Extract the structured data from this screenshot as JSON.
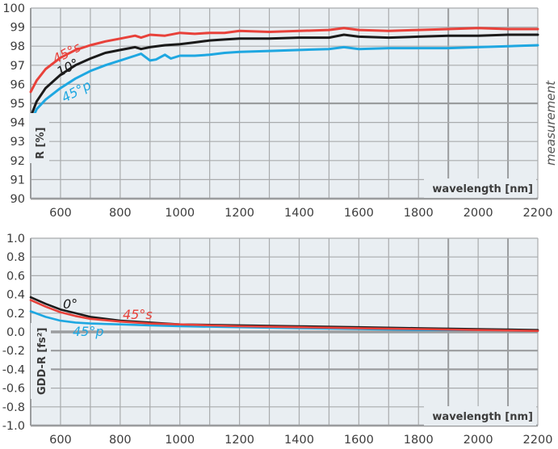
{
  "colors": {
    "panel_bg": "#e9eef2",
    "grid": "#a9abad",
    "grid_major": "#9a9c9e",
    "s45": "#e8413a",
    "deg": "#1a1a1a",
    "p45": "#1ea7e1",
    "text": "#3c3c3c"
  },
  "side_label": "measurement",
  "chart_data": [
    {
      "type": "line",
      "title": "",
      "xlabel": "wavelength [nm]",
      "ylabel": "R [%]",
      "xlim": [
        500,
        2200
      ],
      "ylim": [
        90,
        100
      ],
      "grid": true,
      "x_ticks": [
        600,
        800,
        1000,
        1200,
        1400,
        1600,
        1800,
        2000,
        2200
      ],
      "x_tick_labels": [
        "600",
        "800",
        "1000",
        "1200",
        "1400",
        "1600",
        "1800",
        "2000",
        "2200"
      ],
      "y_ticks": [
        90,
        91,
        92,
        93,
        94,
        95,
        96,
        97,
        98,
        99,
        100
      ],
      "y_tick_labels": [
        "90",
        "91",
        "92",
        "93",
        "94",
        "95",
        "96",
        "97",
        "98",
        "99",
        "100"
      ],
      "series": [
        {
          "name": "45°s",
          "color_key": "s45",
          "x": [
            500,
            520,
            550,
            600,
            650,
            700,
            750,
            800,
            850,
            870,
            900,
            950,
            1000,
            1050,
            1100,
            1150,
            1200,
            1300,
            1400,
            1500,
            1550,
            1600,
            1700,
            1800,
            1900,
            2000,
            2100,
            2200
          ],
          "y": [
            95.6,
            96.2,
            96.8,
            97.4,
            97.8,
            98.05,
            98.25,
            98.4,
            98.55,
            98.45,
            98.6,
            98.55,
            98.7,
            98.65,
            98.7,
            98.7,
            98.8,
            98.75,
            98.8,
            98.85,
            98.95,
            98.85,
            98.8,
            98.85,
            98.9,
            98.95,
            98.9,
            98.9
          ]
        },
        {
          "name": "10°",
          "color_key": "deg",
          "x": [
            500,
            520,
            550,
            600,
            650,
            700,
            750,
            800,
            850,
            870,
            900,
            950,
            1000,
            1050,
            1100,
            1150,
            1200,
            1300,
            1400,
            1500,
            1550,
            1600,
            1700,
            1800,
            1900,
            2000,
            2100,
            2200
          ],
          "y": [
            94.3,
            95.1,
            95.8,
            96.5,
            97.0,
            97.35,
            97.65,
            97.8,
            97.95,
            97.85,
            97.95,
            98.05,
            98.1,
            98.2,
            98.3,
            98.35,
            98.4,
            98.4,
            98.45,
            98.45,
            98.6,
            98.5,
            98.45,
            98.5,
            98.55,
            98.55,
            98.6,
            98.6
          ]
        },
        {
          "name": "45°p",
          "color_key": "p45",
          "x": [
            500,
            520,
            550,
            600,
            650,
            700,
            750,
            800,
            850,
            870,
            900,
            920,
            950,
            970,
            1000,
            1050,
            1100,
            1150,
            1200,
            1300,
            1400,
            1500,
            1550,
            1600,
            1700,
            1800,
            1900,
            2000,
            2100,
            2200
          ],
          "y": [
            94.0,
            94.7,
            95.2,
            95.8,
            96.3,
            96.7,
            97.0,
            97.25,
            97.5,
            97.6,
            97.25,
            97.3,
            97.55,
            97.35,
            97.5,
            97.5,
            97.55,
            97.65,
            97.7,
            97.75,
            97.8,
            97.85,
            97.95,
            97.85,
            97.9,
            97.9,
            97.9,
            97.95,
            98.0,
            98.05
          ]
        }
      ],
      "annotations": [
        "45°s",
        "10°",
        "45°p"
      ]
    },
    {
      "type": "line",
      "title": "",
      "xlabel": "wavelength [nm]",
      "ylabel": "GDD-R [fs²]",
      "xlim": [
        500,
        2200
      ],
      "ylim": [
        -1.0,
        1.0
      ],
      "grid": true,
      "x_ticks": [
        600,
        800,
        1000,
        1200,
        1400,
        1600,
        1800,
        2000,
        2200
      ],
      "x_tick_labels": [
        "600",
        "800",
        "1000",
        "1200",
        "1400",
        "1600",
        "1800",
        "2000",
        "2200"
      ],
      "y_ticks": [
        -1.0,
        -0.8,
        -0.6,
        -0.4,
        -0.2,
        0.0,
        0.2,
        0.4,
        0.6,
        0.8,
        1.0
      ],
      "y_tick_labels": [
        "-1.0",
        "-0.8",
        "-0.6",
        "-0.4",
        "-0.2",
        "0.0",
        "0.2",
        "0.4",
        "0.6",
        "0.8",
        "1.0"
      ],
      "series": [
        {
          "name": "0°",
          "color_key": "deg",
          "x": [
            500,
            550,
            600,
            650,
            700,
            800,
            900,
            1000,
            1200,
            1400,
            1600,
            1800,
            2000,
            2200
          ],
          "y": [
            0.37,
            0.3,
            0.24,
            0.2,
            0.16,
            0.12,
            0.1,
            0.08,
            0.07,
            0.06,
            0.05,
            0.04,
            0.03,
            0.02
          ]
        },
        {
          "name": "45°s",
          "color_key": "s45",
          "x": [
            500,
            550,
            600,
            650,
            700,
            800,
            900,
            1000,
            1200,
            1400,
            1600,
            1800,
            2000,
            2200
          ],
          "y": [
            0.34,
            0.27,
            0.21,
            0.17,
            0.14,
            0.11,
            0.09,
            0.08,
            0.06,
            0.05,
            0.04,
            0.03,
            0.02,
            0.01
          ]
        },
        {
          "name": "45°p",
          "color_key": "p45",
          "x": [
            500,
            550,
            600,
            650,
            700,
            800,
            900,
            1000,
            1200,
            1400,
            1600,
            1800,
            2000,
            2200
          ],
          "y": [
            0.22,
            0.16,
            0.12,
            0.1,
            0.09,
            0.08,
            0.07,
            0.06,
            0.05,
            0.04,
            0.03,
            0.02,
            0.02,
            0.01
          ]
        }
      ],
      "annotations": [
        "0°",
        "45°s",
        "45°p"
      ]
    }
  ]
}
